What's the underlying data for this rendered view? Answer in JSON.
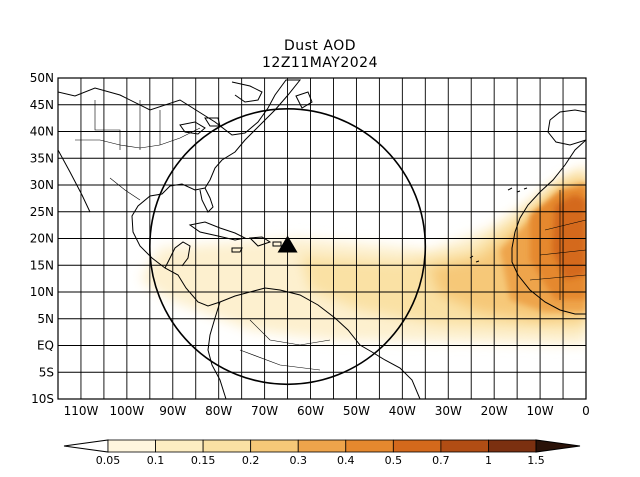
{
  "title": "Dust AOD",
  "subtitle": "12Z11MAY2024",
  "map": {
    "lon_range": [
      -115,
      0
    ],
    "lat_range": [
      -10,
      50
    ],
    "lat_ticks": [
      "50N",
      "45N",
      "40N",
      "35N",
      "30N",
      "25N",
      "20N",
      "15N",
      "10N",
      "5N",
      "EQ",
      "5S",
      "10S"
    ],
    "lon_ticks": [
      "110W",
      "100W",
      "90W",
      "80W",
      "70W",
      "60W",
      "50W",
      "40W",
      "30W",
      "20W",
      "10W",
      "0"
    ],
    "grid": "on, 5 degree spacing",
    "marker": {
      "type": "triangle",
      "lon": -65,
      "lat": 18.5
    },
    "circle": {
      "center_lon": -65,
      "center_lat": 18.5,
      "radius_deg": 30
    }
  },
  "colorbar": {
    "levels": [
      "0.05",
      "0.1",
      "0.15",
      "0.2",
      "0.3",
      "0.4",
      "0.5",
      "0.7",
      "1",
      "1.5"
    ],
    "colors": [
      "#ffffff",
      "#fff6de",
      "#fdedc2",
      "#fae1a4",
      "#f6c878",
      "#eea44b",
      "#e5882e",
      "#d4691c",
      "#b14d14",
      "#7b3010",
      "#2a1208"
    ]
  }
}
